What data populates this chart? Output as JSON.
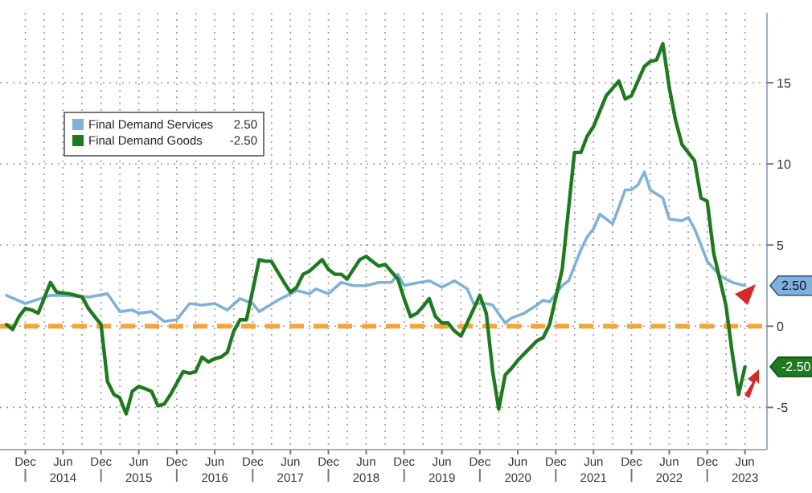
{
  "chart_data": {
    "type": "line",
    "xlim": [
      "2013-08-01",
      "2023-09-15"
    ],
    "ylim": [
      -7.6,
      19.3
    ],
    "xticks": [
      {
        "value": "2013-12",
        "label": "Dec"
      },
      {
        "value": "2014-06",
        "label": "Jun\n2014"
      },
      {
        "value": "2014-12",
        "label": "Dec"
      },
      {
        "value": "2015-06",
        "label": "Jun\n2015"
      },
      {
        "value": "2015-12",
        "label": "Dec"
      },
      {
        "value": "2016-06",
        "label": "Jun\n2016"
      },
      {
        "value": "2016-12",
        "label": "Dec"
      },
      {
        "value": "2017-06",
        "label": "Jun\n2017"
      },
      {
        "value": "2017-12",
        "label": "Dec"
      },
      {
        "value": "2018-06",
        "label": "Jun\n2018"
      },
      {
        "value": "2018-12",
        "label": "Dec"
      },
      {
        "value": "2019-06",
        "label": "Jun\n2019"
      },
      {
        "value": "2019-12",
        "label": "Dec"
      },
      {
        "value": "2020-06",
        "label": "Jun\n2020"
      },
      {
        "value": "2020-12",
        "label": "Dec"
      },
      {
        "value": "2021-06",
        "label": "Jun\n2021"
      },
      {
        "value": "2021-12",
        "label": "Dec"
      },
      {
        "value": "2022-06",
        "label": "Jun\n2022"
      },
      {
        "value": "2022-12",
        "label": "Dec"
      },
      {
        "value": "2023-06",
        "label": "Jun\n2023"
      }
    ],
    "yticks": [
      -5,
      0,
      5,
      10,
      15
    ],
    "grid": true,
    "legend": "top left",
    "line_style": "solid",
    "marker": "none",
    "ref_lines": [
      {
        "axis": "y",
        "value": 0,
        "color": "#f2a53a",
        "line_style": "dashed"
      }
    ],
    "annotations": [
      "2.50",
      "-2.50"
    ],
    "series": [
      {
        "name": "Final Demand Services",
        "color": "#80b1d9",
        "x": [
          "2013-09",
          "2013-12",
          "2014-04",
          "2014-06",
          "2014-10",
          "2015-01",
          "2015-03",
          "2015-05",
          "2015-06",
          "2015-08",
          "2015-10",
          "2015-12",
          "2016-02",
          "2016-04",
          "2016-06",
          "2016-08",
          "2016-10",
          "2016-12",
          "2017-01",
          "2017-04",
          "2017-06",
          "2017-07",
          "2017-09",
          "2017-10",
          "2017-12",
          "2018-02",
          "2018-04",
          "2018-06",
          "2018-08",
          "2018-10",
          "2018-11",
          "2018-12",
          "2019-01",
          "2019-04",
          "2019-06",
          "2019-08",
          "2019-10",
          "2019-11",
          "2020-01",
          "2020-02",
          "2020-04",
          "2020-05",
          "2020-07",
          "2020-09",
          "2020-10",
          "2020-11",
          "2021-01",
          "2021-02",
          "2021-04",
          "2021-05",
          "2021-06",
          "2021-07",
          "2021-09",
          "2021-11",
          "2021-12",
          "2022-01",
          "2022-02",
          "2022-03",
          "2022-05",
          "2022-06",
          "2022-08",
          "2022-09",
          "2022-10",
          "2022-11",
          "2022-12",
          "2023-02",
          "2023-03",
          "2023-04",
          "2023-06"
        ],
        "values": [
          1.9,
          1.4,
          1.9,
          1.9,
          1.8,
          2.0,
          0.9,
          1.0,
          0.8,
          0.9,
          0.3,
          0.4,
          1.4,
          1.3,
          1.4,
          1.0,
          1.7,
          1.4,
          0.9,
          1.6,
          2.0,
          2.2,
          2.0,
          2.3,
          2.0,
          2.7,
          2.5,
          2.5,
          2.7,
          2.7,
          3.2,
          2.5,
          2.6,
          2.8,
          2.4,
          2.8,
          2.3,
          1.4,
          1.4,
          1.3,
          0.2,
          0.5,
          0.8,
          1.3,
          1.6,
          1.5,
          2.5,
          2.8,
          4.7,
          5.5,
          6.0,
          6.9,
          6.3,
          8.4,
          8.4,
          8.7,
          9.5,
          8.4,
          7.9,
          6.6,
          6.5,
          6.7,
          6.0,
          5.0,
          4.0,
          3.1,
          2.9,
          2.7,
          2.5
        ]
      },
      {
        "name": "Final Demand Goods",
        "color": "#1e7a1e",
        "x": [
          "2013-09",
          "2013-10",
          "2013-11",
          "2013-12",
          "2014-01",
          "2014-02",
          "2014-04",
          "2014-05",
          "2014-07",
          "2014-09",
          "2014-10",
          "2014-12",
          "2015-01",
          "2015-02",
          "2015-03",
          "2015-04",
          "2015-05",
          "2015-06",
          "2015-08",
          "2015-09",
          "2015-10",
          "2015-11",
          "2016-01",
          "2016-02",
          "2016-03",
          "2016-04",
          "2016-05",
          "2016-06",
          "2016-07",
          "2016-08",
          "2016-09",
          "2016-10",
          "2016-11",
          "2016-12",
          "2017-01",
          "2017-02",
          "2017-03",
          "2017-05",
          "2017-06",
          "2017-07",
          "2017-08",
          "2017-09",
          "2017-11",
          "2017-12",
          "2018-01",
          "2018-02",
          "2018-03",
          "2018-05",
          "2018-06",
          "2018-07",
          "2018-08",
          "2018-09",
          "2018-11",
          "2018-12",
          "2019-01",
          "2019-02",
          "2019-03",
          "2019-04",
          "2019-05",
          "2019-06",
          "2019-07",
          "2019-08",
          "2019-09",
          "2019-10",
          "2019-12",
          "2020-01",
          "2020-02",
          "2020-03",
          "2020-04",
          "2020-05",
          "2020-06",
          "2020-08",
          "2020-09",
          "2020-10",
          "2020-11",
          "2021-01",
          "2021-03",
          "2021-04",
          "2021-05",
          "2021-06",
          "2021-08",
          "2021-10",
          "2021-11",
          "2021-12",
          "2022-02",
          "2022-03",
          "2022-04",
          "2022-05",
          "2022-06",
          "2022-07",
          "2022-08",
          "2022-10",
          "2022-11",
          "2022-12",
          "2023-01",
          "2023-03",
          "2023-04",
          "2023-05",
          "2023-06"
        ],
        "values": [
          0.1,
          -0.2,
          0.6,
          1.1,
          1.0,
          0.8,
          2.7,
          2.1,
          2.0,
          1.8,
          1.1,
          0.1,
          -3.4,
          -4.2,
          -4.4,
          -5.4,
          -4.0,
          -3.7,
          -4.0,
          -4.9,
          -4.8,
          -4.2,
          -2.8,
          -2.9,
          -2.8,
          -1.9,
          -2.2,
          -2.0,
          -1.9,
          -1.6,
          -0.3,
          0.4,
          0.4,
          2.2,
          4.1,
          4.0,
          4.0,
          2.7,
          2.1,
          2.4,
          3.2,
          3.4,
          4.1,
          3.5,
          3.2,
          3.2,
          2.9,
          4.1,
          4.3,
          4.0,
          3.7,
          3.8,
          2.9,
          1.7,
          0.6,
          0.8,
          1.2,
          1.7,
          0.6,
          0.2,
          0.2,
          -0.3,
          -0.6,
          0.2,
          1.9,
          0.8,
          -2.8,
          -5.1,
          -3.0,
          -2.6,
          -2.1,
          -1.3,
          -0.9,
          -0.7,
          0.1,
          3.5,
          10.7,
          10.7,
          11.7,
          12.3,
          14.2,
          15.1,
          14.0,
          14.2,
          16.0,
          16.3,
          16.4,
          17.4,
          14.7,
          12.7,
          11.2,
          10.2,
          7.9,
          7.7,
          4.5,
          1.3,
          -1.7,
          -4.2,
          -2.5
        ]
      }
    ]
  }
}
